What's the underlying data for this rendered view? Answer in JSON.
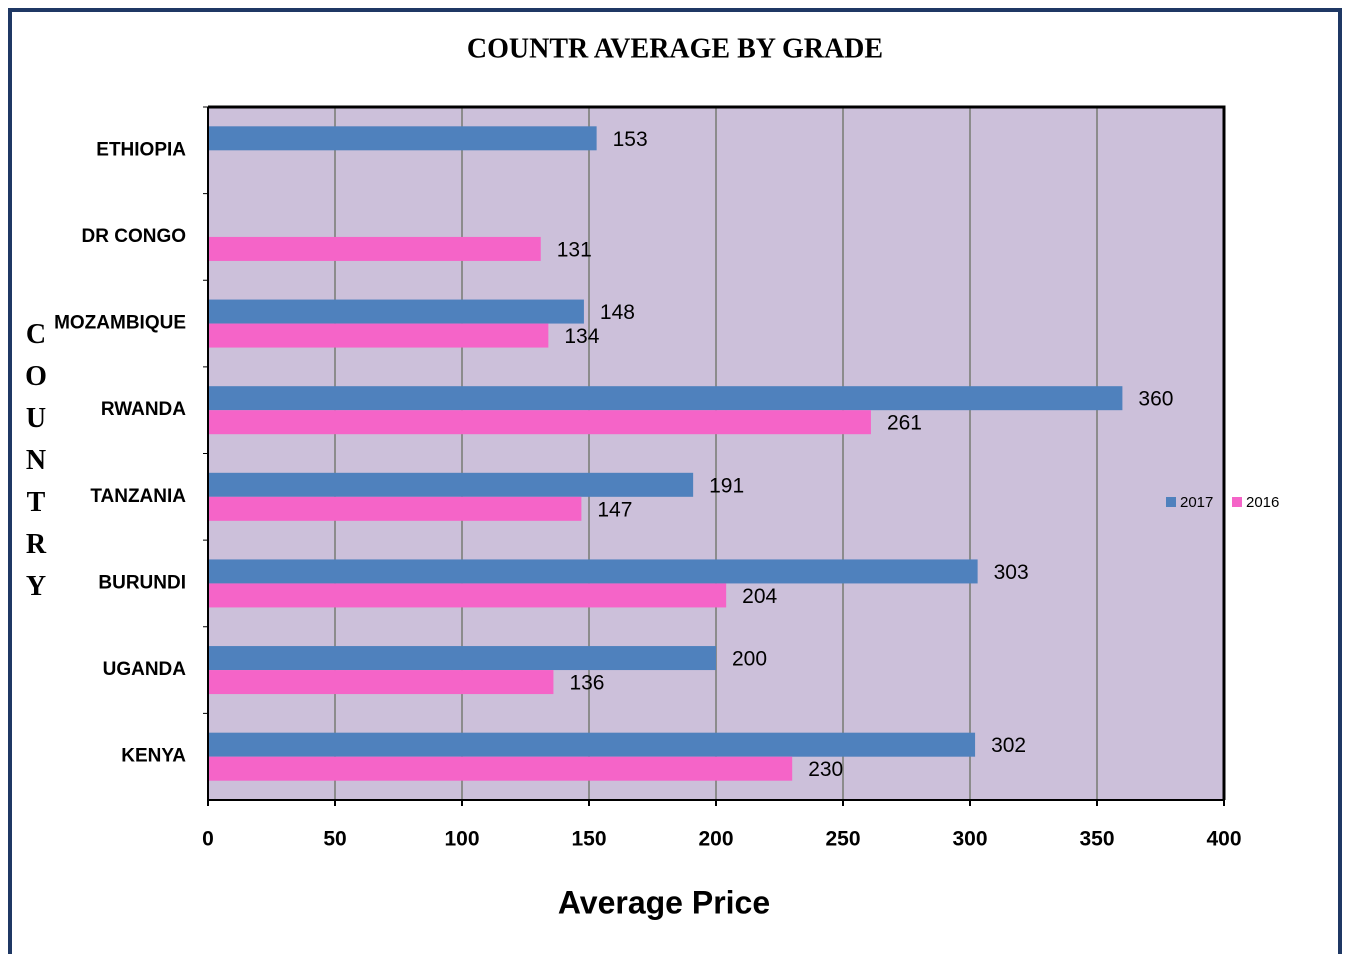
{
  "chart_data": {
    "type": "bar",
    "orientation": "horizontal",
    "title": "COUNTR AVERAGE  BY GRADE",
    "x_label": "Average Price",
    "y_label": "COUNTRY",
    "categories": [
      "ETHIOPIA",
      "DR CONGO",
      "MOZAMBIQUE",
      "RWANDA",
      "TANZANIA",
      "BURUNDI",
      "UGANDA",
      "KENYA"
    ],
    "series": [
      {
        "name": "2017",
        "color": "#4f81bd",
        "values": [
          153,
          null,
          148,
          360,
          191,
          303,
          200,
          302
        ]
      },
      {
        "name": "2016",
        "color": "#f564c8",
        "values": [
          null,
          131,
          134,
          261,
          147,
          204,
          136,
          230
        ]
      }
    ],
    "xlim": [
      0,
      400
    ],
    "xticks": [
      0,
      50,
      100,
      150,
      200,
      250,
      300,
      350,
      400
    ],
    "grid": true,
    "legend": "right"
  }
}
